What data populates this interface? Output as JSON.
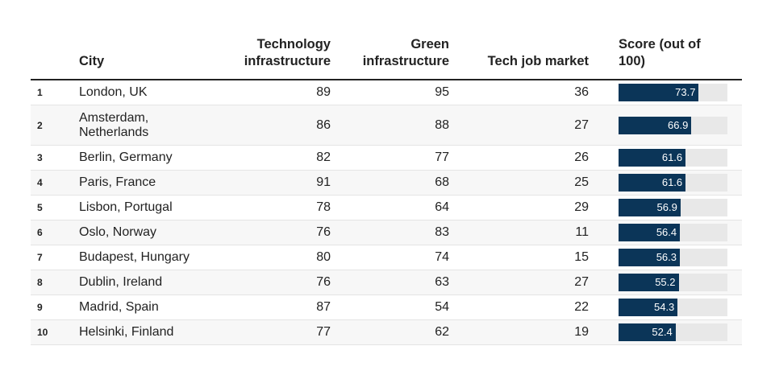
{
  "chart_data": {
    "type": "table",
    "headers": {
      "city": "City",
      "tech_line1": "Technology",
      "tech_line2": "infrastructure",
      "green_line1": "Green",
      "green_line2": "infrastructure",
      "job": "Tech job market",
      "score_line1": "Score (out of",
      "score_line2": "100)"
    },
    "score_max": 100,
    "rows": [
      {
        "rank": "1",
        "city": "London, UK",
        "tech": 89,
        "green": 95,
        "job": 36,
        "score": 73.7
      },
      {
        "rank": "2",
        "city": "Amsterdam, Netherlands",
        "tech": 86,
        "green": 88,
        "job": 27,
        "score": 66.9
      },
      {
        "rank": "3",
        "city": "Berlin, Germany",
        "tech": 82,
        "green": 77,
        "job": 26,
        "score": 61.6
      },
      {
        "rank": "4",
        "city": "Paris, France",
        "tech": 91,
        "green": 68,
        "job": 25,
        "score": 61.6
      },
      {
        "rank": "5",
        "city": "Lisbon, Portugal",
        "tech": 78,
        "green": 64,
        "job": 29,
        "score": 56.9
      },
      {
        "rank": "6",
        "city": "Oslo, Norway",
        "tech": 76,
        "green": 83,
        "job": 11,
        "score": 56.4
      },
      {
        "rank": "7",
        "city": "Budapest, Hungary",
        "tech": 80,
        "green": 74,
        "job": 15,
        "score": 56.3
      },
      {
        "rank": "8",
        "city": "Dublin, Ireland",
        "tech": 76,
        "green": 63,
        "job": 27,
        "score": 55.2
      },
      {
        "rank": "9",
        "city": "Madrid, Spain",
        "tech": 87,
        "green": 54,
        "job": 22,
        "score": 54.3
      },
      {
        "rank": "10",
        "city": "Helsinki, Finland",
        "tech": 77,
        "green": 62,
        "job": 19,
        "score": 52.4
      }
    ],
    "colors": {
      "bar": "#0b3558",
      "track": "#e8e8e8"
    }
  }
}
